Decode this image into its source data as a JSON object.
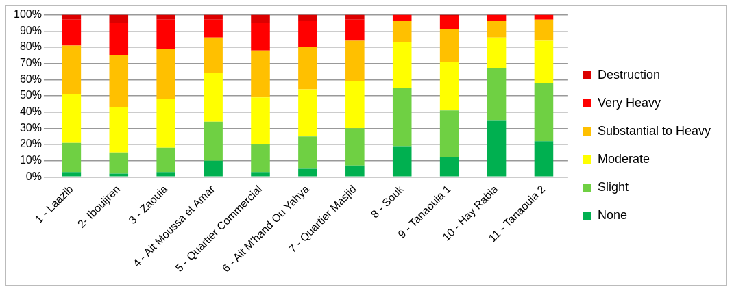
{
  "chart_data": {
    "type": "bar",
    "stacked": true,
    "categories": [
      "1 - Laazib",
      "2- Ibouijren",
      "3 - Zaouia",
      "4 - Ait Moussa et Amar",
      "5 - Quartier Commercial",
      "6 - Ait M'hand Ou Yahya",
      "7 - Quartier Masjid",
      "8 - Souk",
      "9 - Tanaouia 1",
      "10 - Hay Rabia",
      "11 - Tanaouia 2"
    ],
    "series": [
      {
        "name": "None",
        "color": "#00b050",
        "values": [
          3,
          2,
          3,
          10,
          3,
          5,
          7,
          19,
          12,
          35,
          22
        ]
      },
      {
        "name": "Slight",
        "color": "#6fd043",
        "values": [
          18,
          13,
          15,
          24,
          17,
          20,
          23,
          36,
          29,
          32,
          36
        ]
      },
      {
        "name": "Moderate",
        "color": "#ffff00",
        "values": [
          30,
          28,
          30,
          30,
          29,
          29,
          29,
          28,
          30,
          19,
          26
        ]
      },
      {
        "name": "Substantial to Heavy",
        "color": "#ffc000",
        "values": [
          30,
          32,
          31,
          22,
          29,
          26,
          25,
          13,
          20,
          10,
          13
        ]
      },
      {
        "name": "Very Heavy",
        "color": "#ff0000",
        "values": [
          16,
          20,
          18,
          11,
          17,
          16,
          13,
          4,
          8,
          4,
          3
        ]
      },
      {
        "name": "Destruction",
        "color": "#dc0000",
        "values": [
          3,
          5,
          3,
          3,
          5,
          4,
          3,
          0,
          1,
          0,
          0
        ]
      }
    ],
    "ylim": [
      0,
      100
    ],
    "yticks": [
      {
        "value": 0,
        "label": "0%"
      },
      {
        "value": 10,
        "label": "10%"
      },
      {
        "value": 20,
        "label": "20%"
      },
      {
        "value": 30,
        "label": "30%"
      },
      {
        "value": 40,
        "label": "40%"
      },
      {
        "value": 50,
        "label": "50%"
      },
      {
        "value": 60,
        "label": "60%"
      },
      {
        "value": 70,
        "label": "70%"
      },
      {
        "value": 80,
        "label": "80%"
      },
      {
        "value": 90,
        "label": "90%"
      },
      {
        "value": 100,
        "label": "100%"
      }
    ],
    "grid": "y",
    "legend": "right"
  }
}
